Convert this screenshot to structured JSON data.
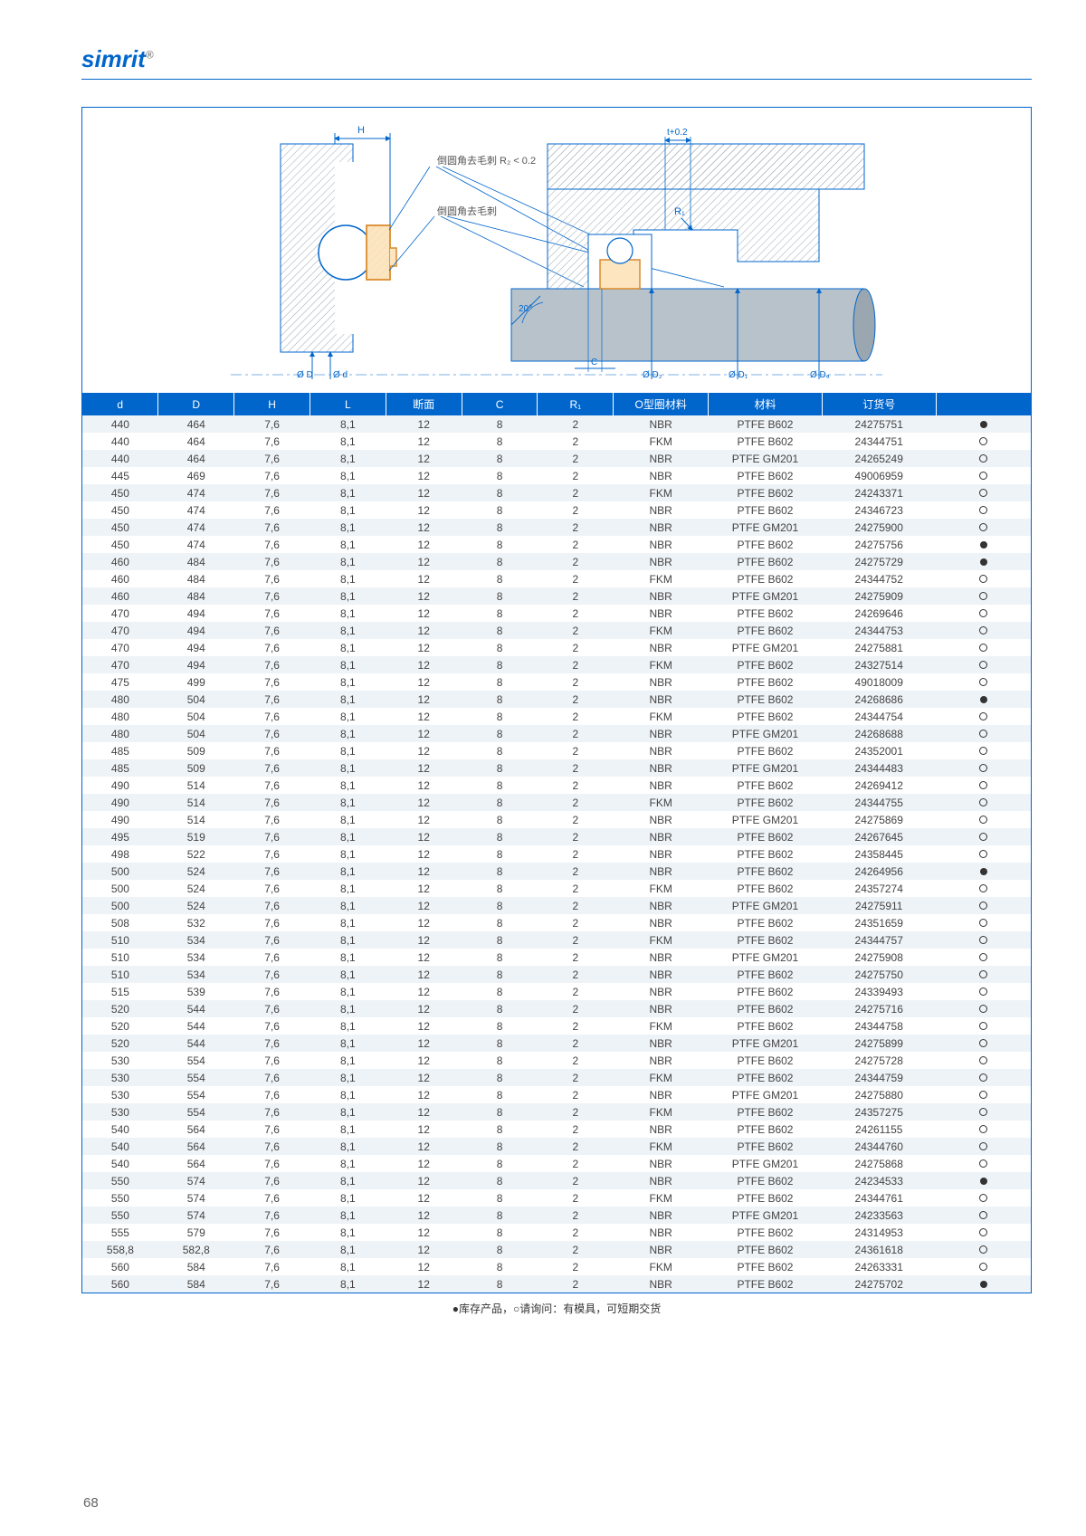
{
  "brand": "simrit",
  "diagram": {
    "labels": {
      "H": "H",
      "t02": "t+0.2",
      "chamfer_r2": "倒圆角去毛刺 R₂ < 0.2",
      "chamfer": "倒圆角去毛刺",
      "R1": "R₁",
      "angle": "20°",
      "C": "C",
      "phiD": "Ø D",
      "phid": "Ø d",
      "phiD2": "Ø D₂",
      "phiD1": "Ø D₁",
      "phiDa": "Ø Dₐ"
    }
  },
  "columns": [
    "d",
    "D",
    "H",
    "L",
    "断面",
    "C",
    "R₁",
    "O型圈材料",
    "材料",
    "订货号",
    ""
  ],
  "rows": [
    [
      "440",
      "464",
      "7,6",
      "8,1",
      "12",
      "8",
      "2",
      "NBR",
      "PTFE B602",
      "24275751",
      "solid"
    ],
    [
      "440",
      "464",
      "7,6",
      "8,1",
      "12",
      "8",
      "2",
      "FKM",
      "PTFE B602",
      "24344751",
      "hollow"
    ],
    [
      "440",
      "464",
      "7,6",
      "8,1",
      "12",
      "8",
      "2",
      "NBR",
      "PTFE GM201",
      "24265249",
      "hollow"
    ],
    [
      "445",
      "469",
      "7,6",
      "8,1",
      "12",
      "8",
      "2",
      "NBR",
      "PTFE B602",
      "49006959",
      "hollow"
    ],
    [
      "450",
      "474",
      "7,6",
      "8,1",
      "12",
      "8",
      "2",
      "FKM",
      "PTFE B602",
      "24243371",
      "hollow"
    ],
    [
      "450",
      "474",
      "7,6",
      "8,1",
      "12",
      "8",
      "2",
      "NBR",
      "PTFE B602",
      "24346723",
      "hollow"
    ],
    [
      "450",
      "474",
      "7,6",
      "8,1",
      "12",
      "8",
      "2",
      "NBR",
      "PTFE GM201",
      "24275900",
      "hollow"
    ],
    [
      "450",
      "474",
      "7,6",
      "8,1",
      "12",
      "8",
      "2",
      "NBR",
      "PTFE B602",
      "24275756",
      "solid"
    ],
    [
      "460",
      "484",
      "7,6",
      "8,1",
      "12",
      "8",
      "2",
      "NBR",
      "PTFE B602",
      "24275729",
      "solid"
    ],
    [
      "460",
      "484",
      "7,6",
      "8,1",
      "12",
      "8",
      "2",
      "FKM",
      "PTFE B602",
      "24344752",
      "hollow"
    ],
    [
      "460",
      "484",
      "7,6",
      "8,1",
      "12",
      "8",
      "2",
      "NBR",
      "PTFE GM201",
      "24275909",
      "hollow"
    ],
    [
      "470",
      "494",
      "7,6",
      "8,1",
      "12",
      "8",
      "2",
      "NBR",
      "PTFE B602",
      "24269646",
      "hollow"
    ],
    [
      "470",
      "494",
      "7,6",
      "8,1",
      "12",
      "8",
      "2",
      "FKM",
      "PTFE B602",
      "24344753",
      "hollow"
    ],
    [
      "470",
      "494",
      "7,6",
      "8,1",
      "12",
      "8",
      "2",
      "NBR",
      "PTFE GM201",
      "24275881",
      "hollow"
    ],
    [
      "470",
      "494",
      "7,6",
      "8,1",
      "12",
      "8",
      "2",
      "FKM",
      "PTFE B602",
      "24327514",
      "hollow"
    ],
    [
      "475",
      "499",
      "7,6",
      "8,1",
      "12",
      "8",
      "2",
      "NBR",
      "PTFE B602",
      "49018009",
      "hollow"
    ],
    [
      "480",
      "504",
      "7,6",
      "8,1",
      "12",
      "8",
      "2",
      "NBR",
      "PTFE B602",
      "24268686",
      "solid"
    ],
    [
      "480",
      "504",
      "7,6",
      "8,1",
      "12",
      "8",
      "2",
      "FKM",
      "PTFE B602",
      "24344754",
      "hollow"
    ],
    [
      "480",
      "504",
      "7,6",
      "8,1",
      "12",
      "8",
      "2",
      "NBR",
      "PTFE GM201",
      "24268688",
      "hollow"
    ],
    [
      "485",
      "509",
      "7,6",
      "8,1",
      "12",
      "8",
      "2",
      "NBR",
      "PTFE B602",
      "24352001",
      "hollow"
    ],
    [
      "485",
      "509",
      "7,6",
      "8,1",
      "12",
      "8",
      "2",
      "NBR",
      "PTFE GM201",
      "24344483",
      "hollow"
    ],
    [
      "490",
      "514",
      "7,6",
      "8,1",
      "12",
      "8",
      "2",
      "NBR",
      "PTFE B602",
      "24269412",
      "hollow"
    ],
    [
      "490",
      "514",
      "7,6",
      "8,1",
      "12",
      "8",
      "2",
      "FKM",
      "PTFE B602",
      "24344755",
      "hollow"
    ],
    [
      "490",
      "514",
      "7,6",
      "8,1",
      "12",
      "8",
      "2",
      "NBR",
      "PTFE GM201",
      "24275869",
      "hollow"
    ],
    [
      "495",
      "519",
      "7,6",
      "8,1",
      "12",
      "8",
      "2",
      "NBR",
      "PTFE B602",
      "24267645",
      "hollow"
    ],
    [
      "498",
      "522",
      "7,6",
      "8,1",
      "12",
      "8",
      "2",
      "NBR",
      "PTFE B602",
      "24358445",
      "hollow"
    ],
    [
      "500",
      "524",
      "7,6",
      "8,1",
      "12",
      "8",
      "2",
      "NBR",
      "PTFE B602",
      "24264956",
      "solid"
    ],
    [
      "500",
      "524",
      "7,6",
      "8,1",
      "12",
      "8",
      "2",
      "FKM",
      "PTFE B602",
      "24357274",
      "hollow"
    ],
    [
      "500",
      "524",
      "7,6",
      "8,1",
      "12",
      "8",
      "2",
      "NBR",
      "PTFE GM201",
      "24275911",
      "hollow"
    ],
    [
      "508",
      "532",
      "7,6",
      "8,1",
      "12",
      "8",
      "2",
      "NBR",
      "PTFE B602",
      "24351659",
      "hollow"
    ],
    [
      "510",
      "534",
      "7,6",
      "8,1",
      "12",
      "8",
      "2",
      "FKM",
      "PTFE B602",
      "24344757",
      "hollow"
    ],
    [
      "510",
      "534",
      "7,6",
      "8,1",
      "12",
      "8",
      "2",
      "NBR",
      "PTFE GM201",
      "24275908",
      "hollow"
    ],
    [
      "510",
      "534",
      "7,6",
      "8,1",
      "12",
      "8",
      "2",
      "NBR",
      "PTFE B602",
      "24275750",
      "hollow"
    ],
    [
      "515",
      "539",
      "7,6",
      "8,1",
      "12",
      "8",
      "2",
      "NBR",
      "PTFE B602",
      "24339493",
      "hollow"
    ],
    [
      "520",
      "544",
      "7,6",
      "8,1",
      "12",
      "8",
      "2",
      "NBR",
      "PTFE B602",
      "24275716",
      "hollow"
    ],
    [
      "520",
      "544",
      "7,6",
      "8,1",
      "12",
      "8",
      "2",
      "FKM",
      "PTFE B602",
      "24344758",
      "hollow"
    ],
    [
      "520",
      "544",
      "7,6",
      "8,1",
      "12",
      "8",
      "2",
      "NBR",
      "PTFE GM201",
      "24275899",
      "hollow"
    ],
    [
      "530",
      "554",
      "7,6",
      "8,1",
      "12",
      "8",
      "2",
      "NBR",
      "PTFE B602",
      "24275728",
      "hollow"
    ],
    [
      "530",
      "554",
      "7,6",
      "8,1",
      "12",
      "8",
      "2",
      "FKM",
      "PTFE B602",
      "24344759",
      "hollow"
    ],
    [
      "530",
      "554",
      "7,6",
      "8,1",
      "12",
      "8",
      "2",
      "NBR",
      "PTFE GM201",
      "24275880",
      "hollow"
    ],
    [
      "530",
      "554",
      "7,6",
      "8,1",
      "12",
      "8",
      "2",
      "FKM",
      "PTFE B602",
      "24357275",
      "hollow"
    ],
    [
      "540",
      "564",
      "7,6",
      "8,1",
      "12",
      "8",
      "2",
      "NBR",
      "PTFE B602",
      "24261155",
      "hollow"
    ],
    [
      "540",
      "564",
      "7,6",
      "8,1",
      "12",
      "8",
      "2",
      "FKM",
      "PTFE B602",
      "24344760",
      "hollow"
    ],
    [
      "540",
      "564",
      "7,6",
      "8,1",
      "12",
      "8",
      "2",
      "NBR",
      "PTFE GM201",
      "24275868",
      "hollow"
    ],
    [
      "550",
      "574",
      "7,6",
      "8,1",
      "12",
      "8",
      "2",
      "NBR",
      "PTFE B602",
      "24234533",
      "solid"
    ],
    [
      "550",
      "574",
      "7,6",
      "8,1",
      "12",
      "8",
      "2",
      "FKM",
      "PTFE B602",
      "24344761",
      "hollow"
    ],
    [
      "550",
      "574",
      "7,6",
      "8,1",
      "12",
      "8",
      "2",
      "NBR",
      "PTFE GM201",
      "24233563",
      "hollow"
    ],
    [
      "555",
      "579",
      "7,6",
      "8,1",
      "12",
      "8",
      "2",
      "NBR",
      "PTFE B602",
      "24314953",
      "hollow"
    ],
    [
      "558,8",
      "582,8",
      "7,6",
      "8,1",
      "12",
      "8",
      "2",
      "NBR",
      "PTFE B602",
      "24361618",
      "hollow"
    ],
    [
      "560",
      "584",
      "7,6",
      "8,1",
      "12",
      "8",
      "2",
      "FKM",
      "PTFE B602",
      "24263331",
      "hollow"
    ],
    [
      "560",
      "584",
      "7,6",
      "8,1",
      "12",
      "8",
      "2",
      "NBR",
      "PTFE B602",
      "24275702",
      "solid"
    ]
  ],
  "colors": {
    "header_bg": "#0066cc",
    "row_odd": "#eef3f7",
    "row_even": "#ffffff",
    "diagram_hatch": "#9aa7b0",
    "diagram_line": "#0066cc",
    "diagram_seal_fill": "#fce5bf",
    "diagram_seal_stroke": "#d98a2b"
  },
  "legend_text": "●库存产品，○请询问：有模具，可短期交货",
  "page_number": "68"
}
